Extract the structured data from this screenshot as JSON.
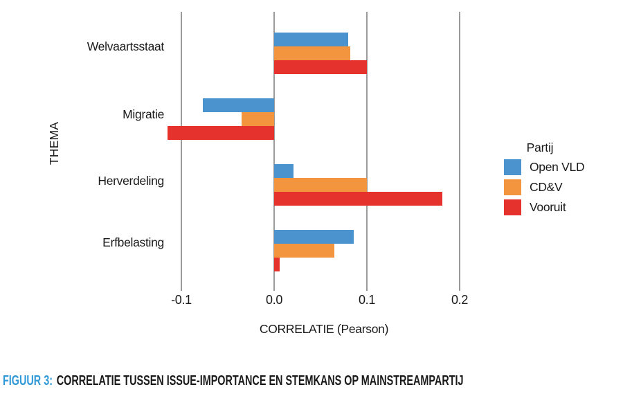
{
  "figure": {
    "caption_prefix": "FIGUUR 3:",
    "caption_text": "CORRELATIE TUSSEN ISSUE-IMPORTANCE EN STEMKANS OP MAINSTREAMPARTIJ"
  },
  "colors": {
    "open_vld_blue": "#4A93CE",
    "cdv_orange": "#F2953E",
    "vooruit_red": "#E5322D",
    "gridline_gray": "#9B9B9B",
    "caption_accent_blue": "#2F99D7",
    "text_black": "#1A1A1A"
  },
  "chart_data": {
    "type": "bar",
    "orientation": "horizontal",
    "title": "",
    "xlabel": "CORRELATIE (Pearson)",
    "ylabel": "THEMA",
    "categories": [
      "Welvaartsstaat",
      "Migratie",
      "Herverdeling",
      "Erfbelasting"
    ],
    "series": [
      {
        "name": "Open VLD",
        "color": "#4A93CE",
        "values": [
          0.08,
          -0.077,
          0.021,
          0.086
        ]
      },
      {
        "name": "CD&V",
        "color": "#F2953E",
        "values": [
          0.082,
          -0.035,
          0.1,
          0.065
        ]
      },
      {
        "name": "Vooruit",
        "color": "#E5322D",
        "values": [
          0.1,
          -0.115,
          0.181,
          0.006
        ]
      }
    ],
    "xticks": [
      -0.1,
      0.0,
      0.1,
      0.2
    ],
    "xtick_labels": [
      "-0.1",
      "0.0",
      "0.1",
      "0.2"
    ],
    "xlim": [
      -0.13,
      0.23
    ],
    "grid": "vertical-gridlines-at-ticks",
    "legend": {
      "title": "Partij",
      "position": "right"
    }
  }
}
